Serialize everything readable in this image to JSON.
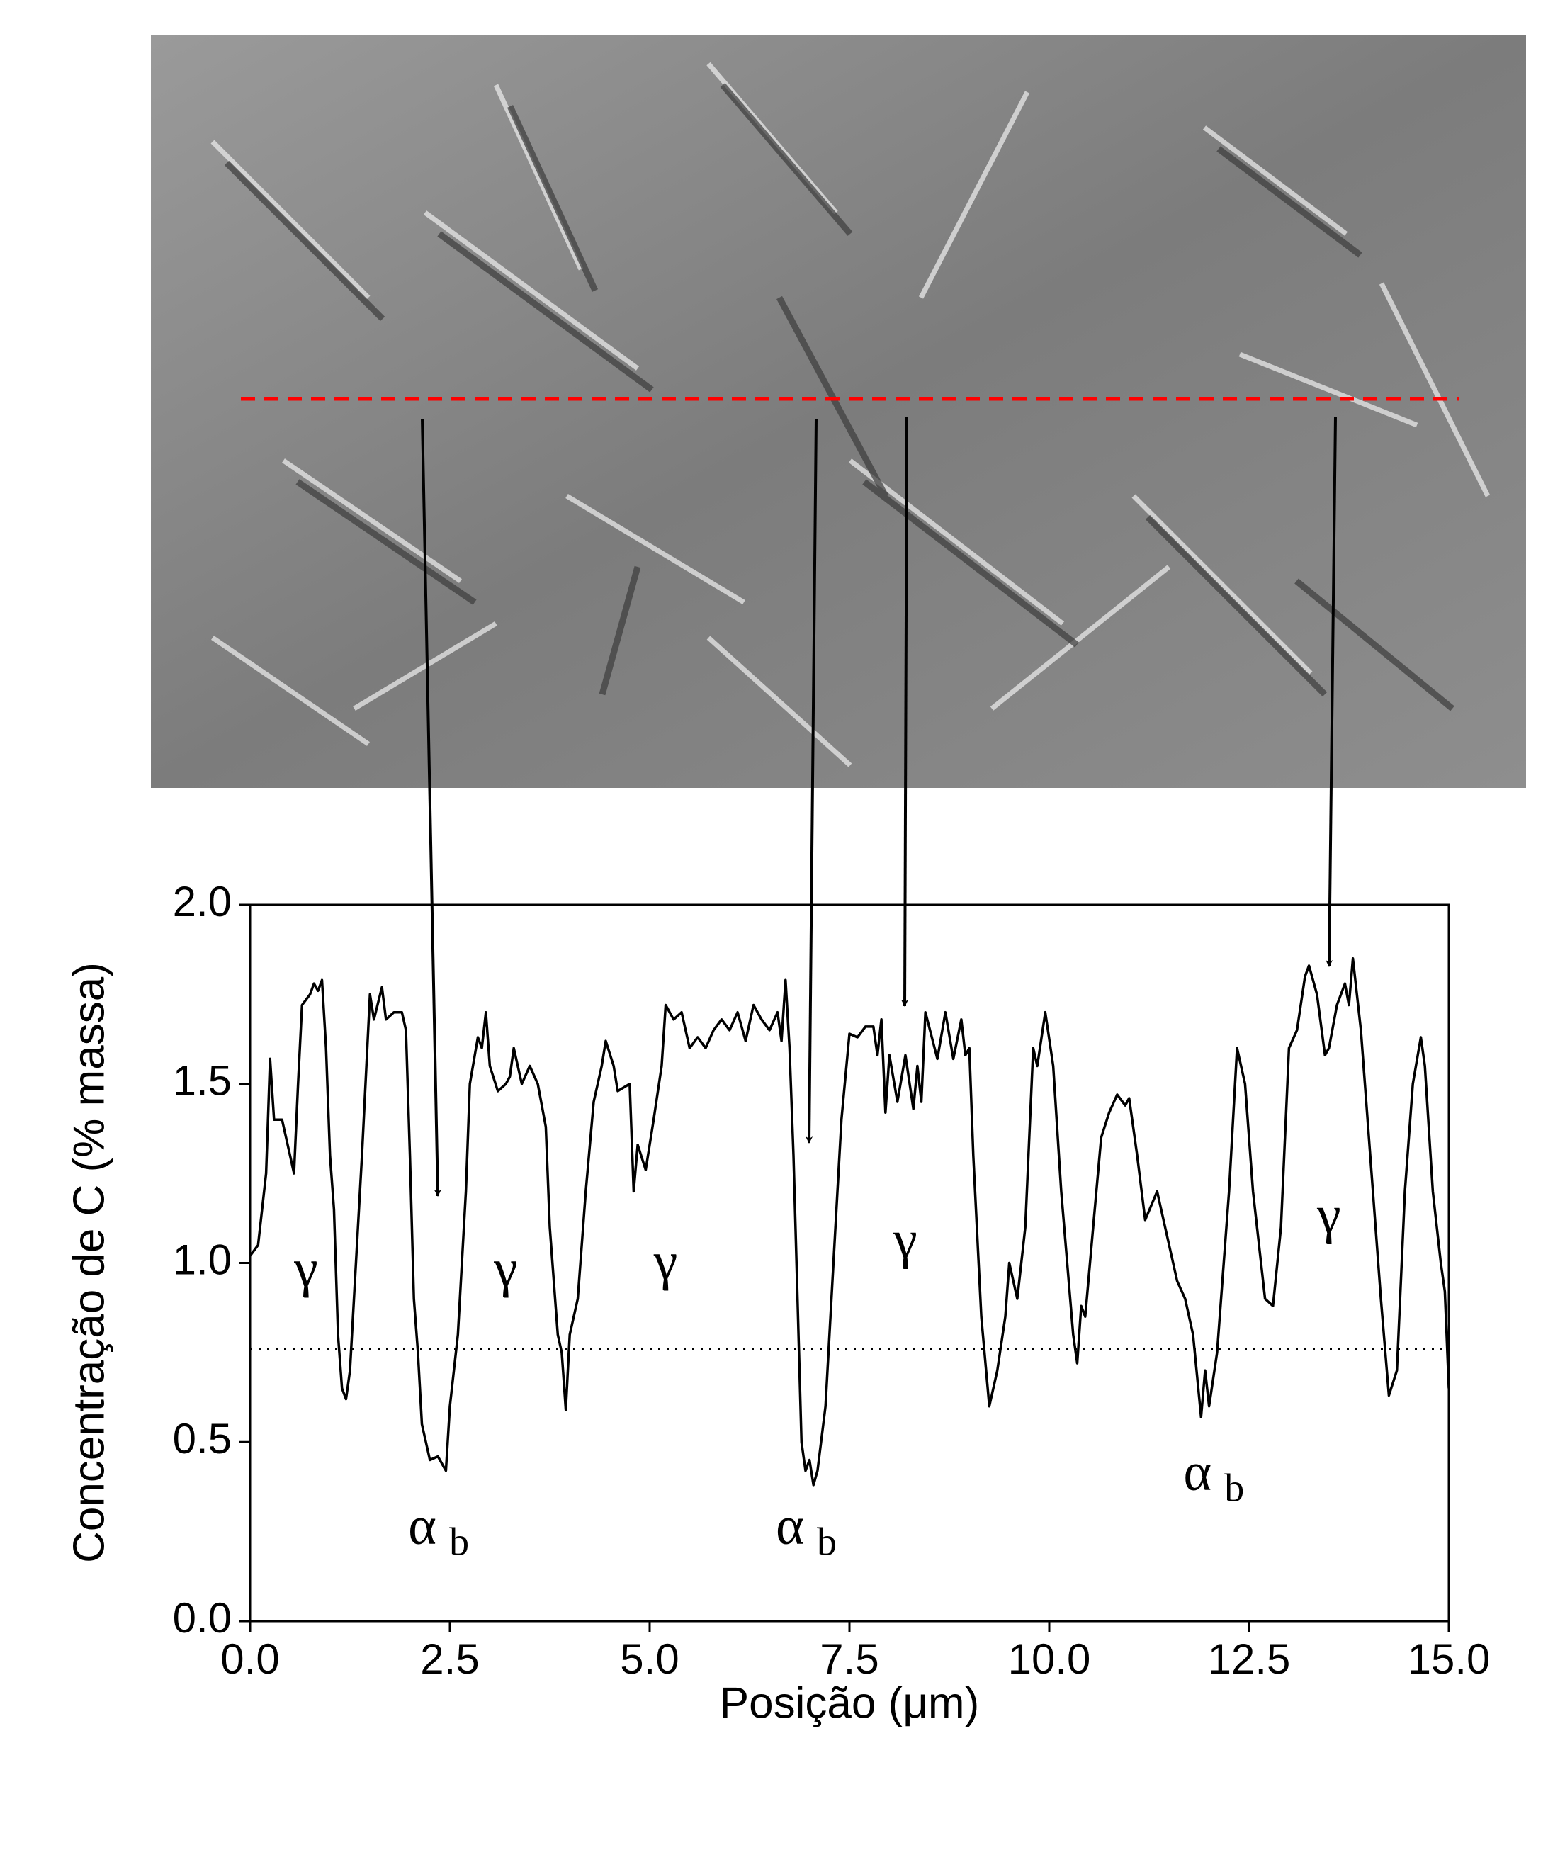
{
  "chart_data": {
    "type": "line",
    "x_label": "Posição (μm)",
    "y_label": "Concentração de C (% massa)",
    "xlim": [
      0,
      15
    ],
    "ylim": [
      0,
      2
    ],
    "xticks": [
      {
        "value": 0,
        "label": "0.0"
      },
      {
        "value": 2.5,
        "label": "2.5"
      },
      {
        "value": 5,
        "label": "5.0"
      },
      {
        "value": 7.5,
        "label": "7.5"
      },
      {
        "value": 10,
        "label": "10.0"
      },
      {
        "value": 12.5,
        "label": "12.5"
      },
      {
        "value": 15,
        "label": "15.0"
      }
    ],
    "yticks": [
      {
        "value": 0,
        "label": "0.0"
      },
      {
        "value": 0.5,
        "label": "0.5"
      },
      {
        "value": 1,
        "label": "1.0"
      },
      {
        "value": 1.5,
        "label": "1.5"
      },
      {
        "value": 2,
        "label": "2.0"
      }
    ],
    "reference_line": 0.76,
    "annotations": [
      {
        "text": "γ"
      },
      {
        "text": "γ"
      },
      {
        "text": "γ"
      },
      {
        "text": "γ"
      },
      {
        "text": "γ"
      },
      {
        "text": "α",
        "subscript": "b"
      },
      {
        "text": "α",
        "subscript": "b"
      },
      {
        "text": "α",
        "subscript": "b"
      }
    ],
    "x": [
      0,
      0.1,
      0.2,
      0.25,
      0.3,
      0.4,
      0.5,
      0.55,
      0.6,
      0.65,
      0.75,
      0.8,
      0.85,
      0.9,
      0.95,
      1.0,
      1.05,
      1.1,
      1.15,
      1.2,
      1.25,
      1.3,
      1.4,
      1.5,
      1.55,
      1.65,
      1.7,
      1.8,
      1.9,
      1.95,
      2.0,
      2.05,
      2.1,
      2.15,
      2.25,
      2.35,
      2.45,
      2.5,
      2.6,
      2.7,
      2.75,
      2.85,
      2.9,
      2.95,
      3.0,
      3.1,
      3.2,
      3.25,
      3.3,
      3.4,
      3.5,
      3.6,
      3.7,
      3.75,
      3.85,
      3.9,
      3.95,
      4.0,
      4.1,
      4.2,
      4.3,
      4.4,
      4.45,
      4.55,
      4.6,
      4.75,
      4.8,
      4.85,
      4.95,
      5.05,
      5.15,
      5.2,
      5.3,
      5.4,
      5.5,
      5.6,
      5.7,
      5.8,
      5.9,
      6.0,
      6.1,
      6.2,
      6.3,
      6.4,
      6.5,
      6.6,
      6.65,
      6.7,
      6.75,
      6.8,
      6.85,
      6.9,
      6.95,
      7.0,
      7.05,
      7.1,
      7.2,
      7.3,
      7.4,
      7.5,
      7.6,
      7.7,
      7.8,
      7.85,
      7.9,
      7.95,
      8.0,
      8.1,
      8.2,
      8.3,
      8.35,
      8.4,
      8.45,
      8.6,
      8.7,
      8.8,
      8.9,
      8.95,
      9.0,
      9.05,
      9.15,
      9.25,
      9.35,
      9.45,
      9.5,
      9.6,
      9.7,
      9.8,
      9.85,
      9.95,
      10.05,
      10.15,
      10.3,
      10.35,
      10.4,
      10.45,
      10.55,
      10.65,
      10.75,
      10.85,
      10.95,
      11.0,
      11.1,
      11.2,
      11.35,
      11.4,
      11.5,
      11.6,
      11.7,
      11.8,
      11.9,
      11.95,
      12.0,
      12.1,
      12.25,
      12.35,
      12.45,
      12.55,
      12.7,
      12.8,
      12.9,
      13.0,
      13.1,
      13.2,
      13.25,
      13.35,
      13.45,
      13.5,
      13.6,
      13.7,
      13.75,
      13.8,
      13.9,
      14.0,
      14.15,
      14.25,
      14.35,
      14.45,
      14.55,
      14.65,
      14.7,
      14.8,
      14.9,
      14.95,
      15.0
    ],
    "series": [
      {
        "color": "#000000",
        "values": [
          1.02,
          1.05,
          1.25,
          1.57,
          1.4,
          1.4,
          1.3,
          1.25,
          1.5,
          1.72,
          1.75,
          1.78,
          1.76,
          1.79,
          1.6,
          1.3,
          1.15,
          0.8,
          0.65,
          0.62,
          0.7,
          0.9,
          1.3,
          1.75,
          1.68,
          1.77,
          1.68,
          1.7,
          1.7,
          1.65,
          1.3,
          0.9,
          0.75,
          0.55,
          0.45,
          0.46,
          0.42,
          0.6,
          0.8,
          1.2,
          1.5,
          1.63,
          1.6,
          1.7,
          1.55,
          1.48,
          1.5,
          1.52,
          1.6,
          1.5,
          1.55,
          1.5,
          1.38,
          1.1,
          0.8,
          0.75,
          0.59,
          0.8,
          0.9,
          1.2,
          1.45,
          1.55,
          1.62,
          1.55,
          1.48,
          1.5,
          1.2,
          1.33,
          1.26,
          1.4,
          1.55,
          1.72,
          1.68,
          1.7,
          1.6,
          1.63,
          1.6,
          1.65,
          1.68,
          1.65,
          1.7,
          1.62,
          1.72,
          1.68,
          1.65,
          1.7,
          1.62,
          1.79,
          1.6,
          1.3,
          0.9,
          0.5,
          0.42,
          0.45,
          0.38,
          0.42,
          0.6,
          1.0,
          1.4,
          1.64,
          1.63,
          1.66,
          1.66,
          1.58,
          1.68,
          1.42,
          1.58,
          1.45,
          1.58,
          1.43,
          1.55,
          1.45,
          1.7,
          1.57,
          1.7,
          1.57,
          1.68,
          1.58,
          1.6,
          1.3,
          0.85,
          0.6,
          0.7,
          0.85,
          1.0,
          0.9,
          1.1,
          1.6,
          1.55,
          1.7,
          1.55,
          1.2,
          0.8,
          0.72,
          0.88,
          0.85,
          1.1,
          1.35,
          1.42,
          1.47,
          1.44,
          1.46,
          1.3,
          1.12,
          1.2,
          1.15,
          1.05,
          0.95,
          0.9,
          0.8,
          0.57,
          0.7,
          0.6,
          0.75,
          1.2,
          1.6,
          1.5,
          1.2,
          0.9,
          0.88,
          1.1,
          1.6,
          1.65,
          1.8,
          1.83,
          1.75,
          1.58,
          1.6,
          1.72,
          1.78,
          1.72,
          1.85,
          1.65,
          1.35,
          0.9,
          0.63,
          0.7,
          1.2,
          1.5,
          1.63,
          1.55,
          1.2,
          1.0,
          0.92,
          0.65
        ]
      }
    ]
  }
}
